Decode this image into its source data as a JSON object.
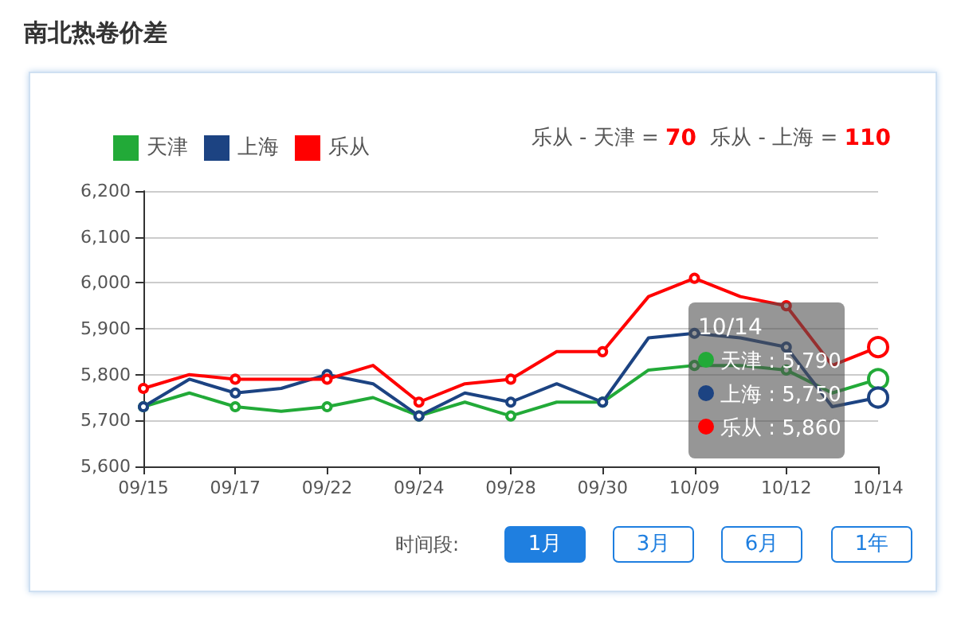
{
  "chart_data": {
    "type": "line",
    "title": "南北热卷价差",
    "categories": [
      "09/15",
      null,
      "09/17",
      null,
      "09/22",
      null,
      "09/24",
      null,
      "09/28",
      null,
      "09/30",
      null,
      "10/09",
      null,
      "10/12",
      null,
      "10/14"
    ],
    "series": [
      {
        "name": "天津",
        "color": "#22aa38",
        "values": [
          5730,
          5760,
          5730,
          5720,
          5730,
          5750,
          5710,
          5740,
          5710,
          5740,
          5740,
          5810,
          5820,
          5820,
          5810,
          5760,
          5790
        ]
      },
      {
        "name": "上海",
        "color": "#1c4382",
        "values": [
          5730,
          5790,
          5760,
          5770,
          5800,
          5780,
          5710,
          5760,
          5740,
          5780,
          5740,
          5880,
          5890,
          5880,
          5860,
          5730,
          5750
        ]
      },
      {
        "name": "乐从",
        "color": "#ff0000",
        "values": [
          5770,
          5800,
          5790,
          5790,
          5790,
          5820,
          5740,
          5780,
          5790,
          5850,
          5850,
          5970,
          6010,
          5970,
          5950,
          5820,
          5860
        ]
      }
    ],
    "ylim": [
      5600,
      6200
    ],
    "yticks": [
      {
        "value": 5600,
        "label": "5,600"
      },
      {
        "value": 5700,
        "label": "5,700"
      },
      {
        "value": 5800,
        "label": "5,800"
      },
      {
        "value": 5900,
        "label": "5,900"
      },
      {
        "value": 6000,
        "label": "6,000"
      },
      {
        "value": 6100,
        "label": "6,100"
      },
      {
        "value": 6200,
        "label": "6,200"
      }
    ],
    "grid": "y",
    "legend": "top left",
    "marker": "circle",
    "line_style": "solid",
    "annotations": [
      "乐从 - 天津 = 70",
      "乐从 - 上海 = 110",
      "10/14",
      "天津 : 5,790",
      "上海 : 5,750",
      "乐从 : 5,860",
      "时间段:",
      "1月",
      "3月",
      "6月",
      "1年"
    ]
  }
}
